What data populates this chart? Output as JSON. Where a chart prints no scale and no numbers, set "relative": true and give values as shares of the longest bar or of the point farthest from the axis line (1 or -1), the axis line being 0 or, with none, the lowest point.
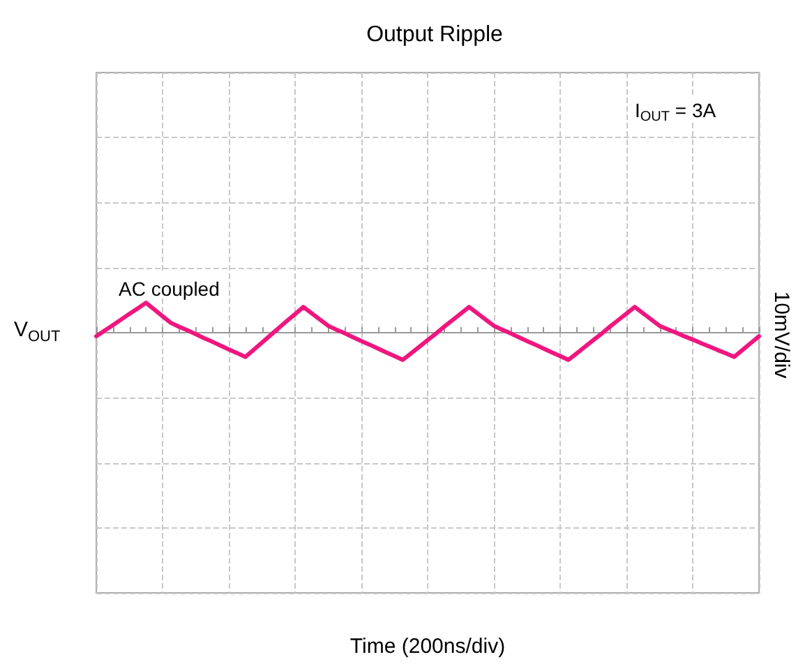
{
  "chart_data": {
    "type": "line",
    "title": "Output Ripple",
    "ylabel": "V$_{OUT}$",
    "y2label": "10mV/div",
    "annotations": [
      "AC coupled",
      "I$_{OUT}$ = 3A",
      "Time (200ns/div)"
    ],
    "relative": true,
    "grid": true,
    "marker": "none",
    "line_style": "solid",
    "categories": [
      null,
      null,
      null,
      null,
      null,
      null,
      null,
      null,
      null,
      null,
      null,
      null,
      null,
      null,
      null,
      null,
      null,
      null,
      null,
      null,
      null,
      null,
      null,
      null,
      null,
      null,
      null,
      null,
      null,
      null,
      null,
      null,
      null,
      null,
      null,
      null,
      null,
      null,
      null,
      null,
      null,
      null,
      null,
      null,
      null,
      null,
      null,
      null,
      null,
      null,
      null,
      null,
      null,
      null,
      null,
      null,
      null,
      null,
      null,
      null,
      null,
      null,
      null,
      null,
      null,
      null,
      null,
      null,
      null,
      null,
      null,
      null,
      null,
      null,
      null,
      null,
      null,
      null,
      null,
      null,
      null
    ],
    "series": [
      {
        "color": "#f0167f",
        "values": [
          -0.12,
          0.07,
          0.25,
          0.44,
          0.63,
          0.81,
          1.0,
          0.78,
          0.55,
          0.33,
          0.2,
          0.08,
          -0.05,
          -0.18,
          -0.3,
          -0.43,
          -0.56,
          -0.68,
          -0.81,
          -0.57,
          -0.33,
          -0.09,
          0.15,
          0.39,
          0.62,
          0.86,
          0.65,
          0.44,
          0.23,
          0.1,
          -0.02,
          -0.15,
          -0.28,
          -0.4,
          -0.53,
          -0.66,
          -0.78,
          -0.91,
          -0.69,
          -0.47,
          -0.25,
          -0.03,
          0.2,
          0.42,
          0.64,
          0.86,
          0.65,
          0.44,
          0.23,
          0.1,
          -0.02,
          -0.15,
          -0.28,
          -0.4,
          -0.53,
          -0.66,
          -0.78,
          -0.91,
          -0.69,
          -0.47,
          -0.25,
          -0.03,
          0.2,
          0.42,
          0.64,
          0.86,
          0.65,
          0.44,
          0.23,
          0.11,
          0.0,
          -0.12,
          -0.23,
          -0.35,
          -0.46,
          -0.58,
          -0.69,
          -0.81,
          -0.58,
          -0.35,
          -0.12
        ]
      }
    ]
  }
}
